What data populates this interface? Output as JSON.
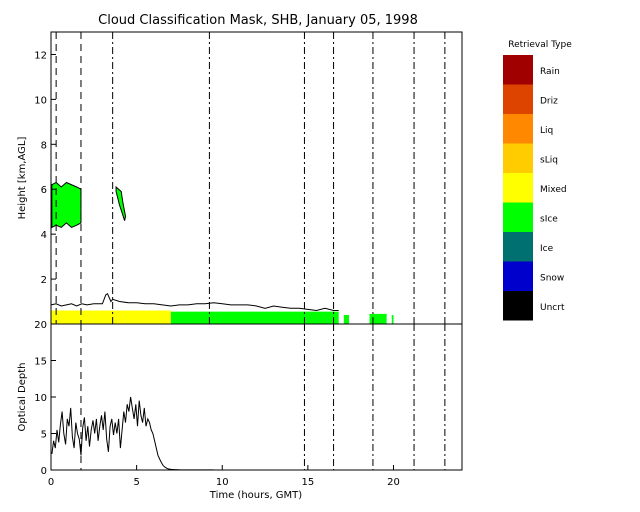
{
  "chart_data": [
    {
      "id": "mask",
      "type": "area",
      "title": "Cloud Classification Mask, SHB, January 05, 1998",
      "ylabel": "Height [km,AGL]",
      "xlim": [
        0,
        24
      ],
      "ylim": [
        0,
        13
      ],
      "yticks": [
        2,
        4,
        6,
        8,
        10,
        12
      ],
      "grid": false,
      "regions": [
        {
          "class": "Mixed",
          "color": "#ffff00",
          "x0": 0.0,
          "x1": 7.0,
          "y0": 0.0,
          "y1": 0.6
        },
        {
          "class": "sIce",
          "color": "#00ff00",
          "x0": 7.0,
          "x1": 16.8,
          "y0": 0.0,
          "y1": 0.55
        },
        {
          "class": "sIce",
          "color": "#00ff00",
          "x0": 17.1,
          "x1": 17.4,
          "y0": 0.0,
          "y1": 0.4
        },
        {
          "class": "sIce",
          "color": "#00ff00",
          "x0": 18.6,
          "x1": 19.6,
          "y0": 0.0,
          "y1": 0.45
        },
        {
          "class": "sIce",
          "color": "#00ff00",
          "x0": 19.9,
          "x1": 20.0,
          "y0": 0.0,
          "y1": 0.4
        }
      ],
      "cloud_top_outline": {
        "x": [
          0.0,
          0.3,
          0.6,
          0.9,
          1.2,
          1.5,
          1.8,
          2.1,
          2.5,
          3.0,
          3.2,
          3.3,
          3.5,
          3.6,
          4.0,
          4.5,
          5.0,
          5.5,
          6.0,
          6.5,
          7.0,
          7.5,
          8.0,
          8.5,
          9.0,
          9.5,
          10.0,
          10.5,
          11.0,
          11.5,
          12.0,
          12.5,
          13.0,
          13.5,
          14.0,
          14.5,
          15.0,
          15.5,
          16.0,
          16.5,
          16.8
        ],
        "y": [
          0.85,
          0.9,
          0.8,
          0.85,
          0.9,
          0.8,
          0.9,
          0.85,
          0.9,
          0.9,
          1.3,
          1.35,
          1.0,
          1.1,
          1.0,
          0.95,
          0.95,
          0.9,
          0.9,
          0.85,
          0.8,
          0.85,
          0.85,
          0.9,
          0.9,
          0.95,
          0.9,
          0.85,
          0.85,
          0.85,
          0.8,
          0.7,
          0.8,
          0.75,
          0.7,
          0.7,
          0.65,
          0.6,
          0.7,
          0.6,
          0.6
        ]
      },
      "upper_clouds": [
        {
          "class": "sIce",
          "color": "#00ff00",
          "x": [
            0.05,
            0.3,
            0.6,
            0.9,
            1.2,
            1.5,
            1.75,
            1.75,
            1.5,
            1.2,
            0.9,
            0.6,
            0.3,
            0.05
          ],
          "y": [
            6.2,
            6.3,
            6.1,
            6.3,
            6.2,
            6.1,
            6.0,
            4.5,
            4.4,
            4.3,
            4.5,
            4.3,
            4.4,
            4.3
          ]
        },
        {
          "class": "sIce",
          "color": "#00ff00",
          "x": [
            3.8,
            4.1,
            4.2,
            4.35,
            4.3,
            4.0,
            3.8
          ],
          "y": [
            6.1,
            5.9,
            5.4,
            4.8,
            4.6,
            5.3,
            5.9
          ]
        }
      ],
      "vertical_lines": [
        {
          "x": 0.3,
          "style": "dashed"
        },
        {
          "x": 1.75,
          "style": "dashed"
        },
        {
          "x": 3.6,
          "style": "dashdot"
        },
        {
          "x": 9.25,
          "style": "dashdot"
        },
        {
          "x": 14.8,
          "style": "dashdot"
        },
        {
          "x": 16.5,
          "style": "dashdot"
        },
        {
          "x": 18.8,
          "style": "dashdot"
        },
        {
          "x": 21.2,
          "style": "dashdot"
        },
        {
          "x": 23.0,
          "style": "dashdot"
        }
      ],
      "legend": {
        "title": "Retrieval Type",
        "placement": "right",
        "entries": [
          {
            "label": "Rain",
            "color": "#a00000"
          },
          {
            "label": "Driz",
            "color": "#dd4400"
          },
          {
            "label": "Liq",
            "color": "#ff8800"
          },
          {
            "label": "sLiq",
            "color": "#ffcc00"
          },
          {
            "label": "Mixed",
            "color": "#ffff00"
          },
          {
            "label": "sIce",
            "color": "#00ff00"
          },
          {
            "label": "Ice",
            "color": "#007070"
          },
          {
            "label": "Snow",
            "color": "#0000cc"
          },
          {
            "label": "Uncrt",
            "color": "#000000"
          }
        ]
      }
    },
    {
      "id": "optical_depth",
      "type": "line",
      "title": "",
      "xlabel": "Time (hours, GMT)",
      "ylabel": "Optical Depth",
      "xlim": [
        0,
        24
      ],
      "ylim": [
        0,
        20
      ],
      "xticks": [
        0,
        5,
        10,
        15,
        20
      ],
      "yticks": [
        0,
        5,
        10,
        15,
        20
      ],
      "grid": false,
      "series": [
        {
          "x": [
            0.05,
            0.15,
            0.25,
            0.35,
            0.45,
            0.55,
            0.65,
            0.75,
            0.85,
            0.95,
            1.05,
            1.15,
            1.25,
            1.35,
            1.45,
            1.55,
            1.65,
            1.75,
            1.85,
            1.95,
            2.05,
            2.15,
            2.25,
            2.35,
            2.45,
            2.55,
            2.65,
            2.75,
            2.85,
            2.95,
            3.05,
            3.15,
            3.25,
            3.35,
            3.45,
            3.55,
            3.65,
            3.75,
            3.85,
            3.95,
            4.05,
            4.15,
            4.25,
            4.35,
            4.45,
            4.55,
            4.65,
            4.75,
            4.85,
            4.95,
            5.05,
            5.15,
            5.25,
            5.35,
            5.45,
            5.55,
            5.65,
            5.75,
            5.85,
            5.95,
            6.05,
            6.15,
            6.25,
            6.35,
            6.45,
            6.55,
            6.65,
            6.75,
            6.85,
            7.0,
            7.2,
            7.5,
            8.0,
            8.5,
            9.0,
            9.5
          ],
          "y": [
            2.2,
            4.0,
            3.0,
            5.5,
            3.8,
            6.2,
            8.0,
            5.0,
            3.5,
            7.0,
            6.0,
            8.5,
            4.5,
            3.0,
            6.5,
            5.0,
            4.2,
            2.0,
            5.8,
            7.2,
            4.0,
            6.0,
            3.2,
            5.5,
            6.8,
            5.0,
            7.0,
            4.0,
            6.0,
            7.5,
            5.5,
            8.0,
            4.2,
            2.5,
            6.0,
            7.0,
            4.8,
            6.5,
            5.0,
            7.0,
            3.0,
            5.5,
            8.0,
            6.5,
            9.0,
            8.0,
            10.0,
            8.5,
            7.0,
            9.0,
            6.0,
            9.5,
            7.5,
            6.5,
            8.5,
            6.0,
            7.0,
            6.5,
            5.5,
            5.0,
            4.0,
            3.0,
            2.0,
            1.5,
            1.0,
            0.6,
            0.4,
            0.25,
            0.15,
            0.08,
            0.05,
            0.03,
            0.02,
            0.02,
            0.02,
            0.02
          ]
        }
      ],
      "vertical_lines": [
        {
          "x": 1.75,
          "style": "dashed"
        },
        {
          "x": 14.8,
          "style": "dashdot"
        },
        {
          "x": 16.5,
          "style": "dashdot"
        },
        {
          "x": 18.8,
          "style": "dashdot"
        },
        {
          "x": 21.2,
          "style": "dashdot"
        },
        {
          "x": 23.0,
          "style": "dashdot"
        }
      ]
    }
  ]
}
